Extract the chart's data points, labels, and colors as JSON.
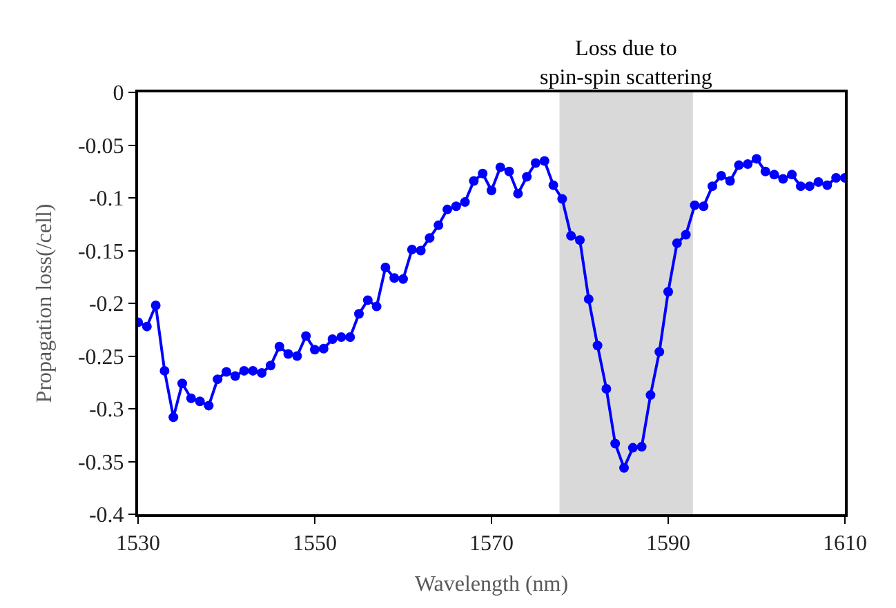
{
  "chart_data": {
    "type": "line",
    "xlabel": "Wavelength (nm)",
    "ylabel": "Propagation loss(/cell)",
    "x": [
      1530,
      1531,
      1532,
      1533,
      1534,
      1535,
      1536,
      1537,
      1538,
      1539,
      1540,
      1541,
      1542,
      1543,
      1544,
      1545,
      1546,
      1547,
      1548,
      1549,
      1550,
      1551,
      1552,
      1553,
      1554,
      1555,
      1556,
      1557,
      1558,
      1559,
      1560,
      1561,
      1562,
      1563,
      1564,
      1565,
      1566,
      1567,
      1568,
      1569,
      1570,
      1571,
      1572,
      1573,
      1574,
      1575,
      1576,
      1577,
      1578,
      1579,
      1580,
      1581,
      1582,
      1583,
      1584,
      1585,
      1586,
      1587,
      1588,
      1589,
      1590,
      1591,
      1592,
      1593,
      1594,
      1595,
      1596,
      1597,
      1598,
      1599,
      1600,
      1601,
      1602,
      1603,
      1604,
      1605,
      1606,
      1607,
      1608,
      1609,
      1610
    ],
    "series": [
      {
        "color": "#0000ff",
        "values": [
          -0.218,
          -0.222,
          -0.202,
          -0.264,
          -0.308,
          -0.276,
          -0.29,
          -0.293,
          -0.297,
          -0.272,
          -0.265,
          -0.269,
          -0.264,
          -0.264,
          -0.266,
          -0.259,
          -0.241,
          -0.248,
          -0.25,
          -0.231,
          -0.244,
          -0.243,
          -0.234,
          -0.232,
          -0.232,
          -0.21,
          -0.197,
          -0.203,
          -0.166,
          -0.176,
          -0.177,
          -0.149,
          -0.15,
          -0.138,
          -0.126,
          -0.111,
          -0.108,
          -0.104,
          -0.084,
          -0.077,
          -0.093,
          -0.071,
          -0.075,
          -0.096,
          -0.08,
          -0.067,
          -0.065,
          -0.088,
          -0.101,
          -0.136,
          -0.14,
          -0.196,
          -0.24,
          -0.281,
          -0.333,
          -0.356,
          -0.337,
          -0.336,
          -0.287,
          -0.246,
          -0.189,
          -0.143,
          -0.135,
          -0.107,
          -0.108,
          -0.089,
          -0.079,
          -0.084,
          -0.069,
          -0.068,
          -0.063,
          -0.075,
          -0.078,
          -0.082,
          -0.078,
          -0.089,
          -0.089,
          -0.085,
          -0.088,
          -0.081,
          -0.081
        ]
      }
    ],
    "xlim": [
      1530,
      1610
    ],
    "xticks": [
      1530,
      1550,
      1570,
      1590,
      1610
    ],
    "ylim": [
      -0.4,
      0
    ],
    "yticks": [
      -0.4,
      -0.35,
      -0.3,
      -0.25,
      -0.2,
      -0.15,
      -0.1,
      -0.05,
      0
    ],
    "bands": [
      {
        "axis": "x",
        "from": 1577.7,
        "to": 1592.8,
        "label": "Loss due to\nspin-spin scattering",
        "color": "#d9d9d9"
      }
    ],
    "marker": "circle",
    "line_style": "solid",
    "grid": false,
    "legend": false
  }
}
